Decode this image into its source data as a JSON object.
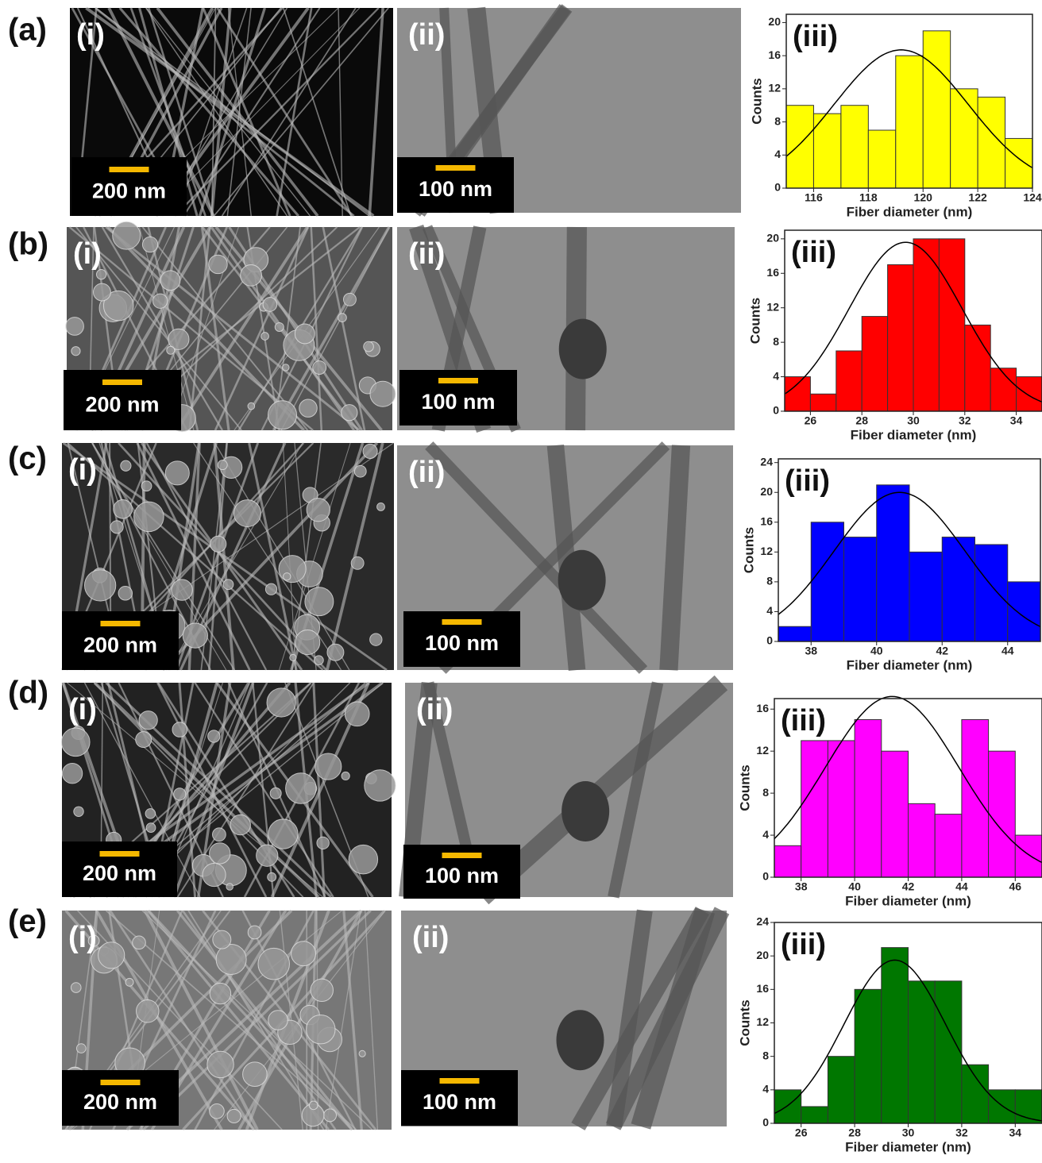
{
  "panels": [
    {
      "label": "(a)",
      "sem": {
        "label": "(i)",
        "scale": "200 nm"
      },
      "tem": {
        "label": "(ii)",
        "scale": "100 nm"
      }
    },
    {
      "label": "(b)",
      "sem": {
        "label": "(i)",
        "scale": "200 nm"
      },
      "tem": {
        "label": "(ii)",
        "scale": "100 nm"
      }
    },
    {
      "label": "(c)",
      "sem": {
        "label": "(i)",
        "scale": "200 nm"
      },
      "tem": {
        "label": "(ii)",
        "scale": "100 nm"
      }
    },
    {
      "label": "(d)",
      "sem": {
        "label": "(i)",
        "scale": "200 nm"
      },
      "tem": {
        "label": "(ii)",
        "scale": "100 nm"
      }
    },
    {
      "label": "(e)",
      "sem": {
        "label": "(i)",
        "scale": "200 nm"
      },
      "tem": {
        "label": "(ii)",
        "scale": "100 nm"
      }
    }
  ],
  "chart_data": [
    {
      "type": "histogram",
      "label": "(iii)",
      "x_label": "Fiber diameter (nm)",
      "y_label": "Counts",
      "color": "#ffff00",
      "bins": [
        115,
        116,
        117,
        118,
        119,
        120,
        121,
        122,
        123,
        124
      ],
      "counts": [
        10,
        9,
        10,
        7,
        16,
        19,
        12,
        11,
        6
      ],
      "xlim": [
        115,
        124
      ],
      "ylim": [
        0,
        21
      ],
      "xticks": [
        116,
        118,
        120,
        122,
        124
      ],
      "yticks": [
        0,
        4,
        8,
        12,
        16,
        20
      ],
      "fit": {
        "center": 119.2,
        "sigma": 2.45,
        "peak": 16.7
      }
    },
    {
      "type": "histogram",
      "label": "(iii)",
      "x_label": "Fiber diameter (nm)",
      "y_label": "Counts",
      "color": "#ff0000",
      "bins": [
        25,
        26,
        27,
        28,
        29,
        30,
        31,
        32,
        33,
        34,
        35
      ],
      "counts": [
        4,
        2,
        7,
        11,
        17,
        20,
        20,
        10,
        5,
        4
      ],
      "xlim": [
        25,
        35
      ],
      "ylim": [
        0,
        21
      ],
      "xticks": [
        26,
        28,
        30,
        32,
        34
      ],
      "yticks": [
        0,
        4,
        8,
        12,
        16,
        20
      ],
      "fit": {
        "center": 29.7,
        "sigma": 2.2,
        "peak": 19.6
      }
    },
    {
      "type": "histogram",
      "label": "(iii)",
      "x_label": "Fiber diameter (nm)",
      "y_label": "Counts",
      "color": "#0000ff",
      "bins": [
        37,
        38,
        39,
        40,
        41,
        42,
        43,
        44,
        45
      ],
      "counts": [
        2,
        16,
        14,
        21,
        12,
        14,
        13,
        8
      ],
      "xlim": [
        37,
        45
      ],
      "ylim": [
        0,
        24.5
      ],
      "xticks": [
        38,
        40,
        42,
        44
      ],
      "yticks": [
        0,
        4,
        8,
        12,
        16,
        20,
        24
      ],
      "fit": {
        "center": 40.7,
        "sigma": 2.0,
        "peak": 20
      }
    },
    {
      "type": "histogram",
      "label": "(iii)",
      "x_label": "Fiber diameter (nm)",
      "y_label": "Counts",
      "color": "#ff00ff",
      "bins": [
        37,
        38,
        39,
        40,
        41,
        42,
        43,
        44,
        45,
        46,
        47
      ],
      "counts": [
        3,
        13,
        13,
        15,
        12,
        7,
        6,
        15,
        12,
        4
      ],
      "xlim": [
        37,
        47
      ],
      "ylim": [
        0,
        17
      ],
      "xticks": [
        38,
        40,
        42,
        44,
        46
      ],
      "yticks": [
        0,
        4,
        8,
        12,
        16
      ],
      "fit": {
        "center": 41.4,
        "sigma": 2.5,
        "peak": 17.2
      }
    },
    {
      "type": "histogram",
      "label": "(iii)",
      "x_label": "Fiber diameter (nm)",
      "y_label": "Counts",
      "color": "#007700",
      "bins": [
        25,
        26,
        27,
        28,
        29,
        30,
        31,
        32,
        33,
        34,
        35
      ],
      "counts": [
        4,
        2,
        8,
        16,
        21,
        17,
        17,
        7,
        4,
        4
      ],
      "xlim": [
        25,
        35
      ],
      "ylim": [
        0,
        24
      ],
      "xticks": [
        26,
        28,
        30,
        32,
        34
      ],
      "yticks": [
        0,
        4,
        8,
        12,
        16,
        20,
        24
      ],
      "fit": {
        "center": 29.5,
        "sigma": 1.9,
        "peak": 19.5
      }
    }
  ]
}
